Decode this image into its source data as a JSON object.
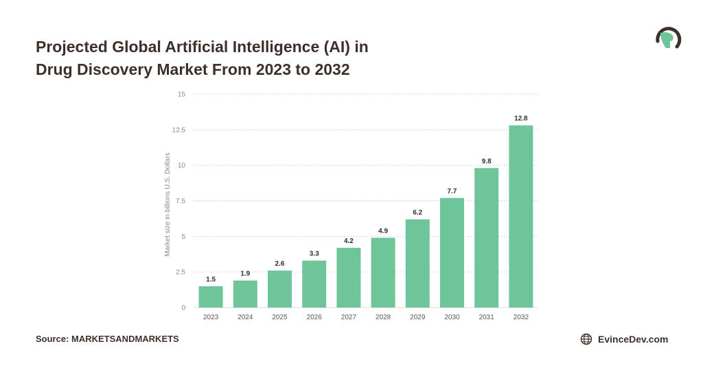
{
  "header": {
    "title_line1": "Projected Global Artificial Intelligence (AI) in",
    "title_line2": "Drug Discovery Market From 2023 to 2032"
  },
  "footer": {
    "source": "Source: MARKETSANDMARKETS",
    "brand": "EvinceDev.com"
  },
  "colors": {
    "bar": "#6fc59a",
    "grid": "#d8d8d8",
    "axis_text": "#8a8a8a",
    "label_text": "#2e2e2e",
    "title": "#3d2f2a",
    "logo_dark": "#3d2f2a",
    "logo_green": "#6fc59a"
  },
  "icons": {
    "logo": "spartan-helmet-icon",
    "globe": "globe-icon"
  },
  "chart_data": {
    "type": "bar",
    "categories": [
      "2023",
      "2024",
      "2025",
      "2026",
      "2027",
      "2028",
      "2029",
      "2030",
      "2031",
      "2032"
    ],
    "values": [
      1.5,
      1.9,
      2.6,
      3.3,
      4.2,
      4.9,
      6.2,
      7.7,
      9.8,
      12.8
    ],
    "value_labels": [
      "1.5",
      "1.9",
      "2.6",
      "3.3",
      "4.2",
      "4.9",
      "6.2",
      "7.7",
      "9.8",
      "12.8"
    ],
    "ylabel": "Market size in billions U.S. Dollars",
    "xlabel": "",
    "ylim": [
      0,
      15
    ],
    "yticks": [
      0,
      2.5,
      5,
      7.5,
      10,
      12.5,
      15
    ],
    "ytick_labels": [
      "0",
      "2.5",
      "5",
      "7.5",
      "10",
      "12.5",
      "15"
    ],
    "grid": true
  }
}
